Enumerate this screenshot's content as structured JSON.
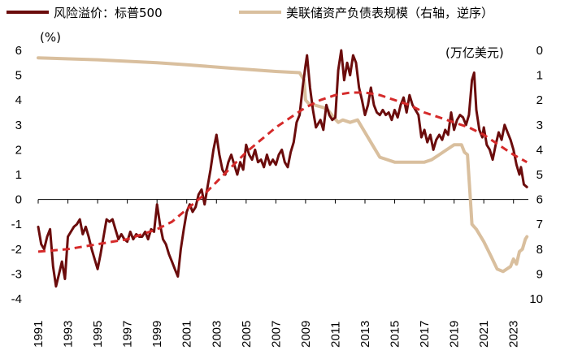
{
  "chart_data": {
    "type": "line",
    "title": "",
    "xlabel": "",
    "legend": "top",
    "x_ticks": [
      "1991",
      "1993",
      "1995",
      "1997",
      "1999",
      "2001",
      "2003",
      "2005",
      "2007",
      "2009",
      "2011",
      "2013",
      "2015",
      "2017",
      "2019",
      "2021",
      "2023"
    ],
    "left_axis": {
      "unit": "(%)",
      "range": [
        -4,
        6
      ],
      "ticks": [
        "6",
        "5",
        "4",
        "3",
        "2",
        "1",
        "0",
        "-1",
        "-2",
        "-3",
        "-4"
      ]
    },
    "right_axis": {
      "unit": "(万亿美元)",
      "range": [
        0,
        10
      ],
      "inverted": true,
      "ticks": [
        "0",
        "1",
        "2",
        "3",
        "4",
        "5",
        "6",
        "7",
        "8",
        "9",
        "10"
      ]
    },
    "colors": {
      "risk": "#6b0c0c",
      "fed": "#d9bf9e",
      "trend": "#d52a2a"
    },
    "series": [
      {
        "name": "风险溢价：标普500",
        "axis": "left",
        "style": "solid",
        "points": [
          [
            1991.0,
            -1.1
          ],
          [
            1991.2,
            -1.8
          ],
          [
            1991.4,
            -2.0
          ],
          [
            1991.6,
            -1.5
          ],
          [
            1991.8,
            -1.2
          ],
          [
            1992.0,
            -2.7
          ],
          [
            1992.2,
            -3.5
          ],
          [
            1992.4,
            -3.0
          ],
          [
            1992.6,
            -2.5
          ],
          [
            1992.8,
            -3.2
          ],
          [
            1993.0,
            -1.5
          ],
          [
            1993.2,
            -1.3
          ],
          [
            1993.4,
            -1.1
          ],
          [
            1993.6,
            -1.0
          ],
          [
            1993.8,
            -0.8
          ],
          [
            1994.0,
            -1.4
          ],
          [
            1994.2,
            -1.1
          ],
          [
            1994.4,
            -1.5
          ],
          [
            1994.6,
            -2.0
          ],
          [
            1994.8,
            -2.4
          ],
          [
            1995.0,
            -2.8
          ],
          [
            1995.2,
            -2.2
          ],
          [
            1995.4,
            -1.5
          ],
          [
            1995.6,
            -0.8
          ],
          [
            1995.8,
            -0.9
          ],
          [
            1996.0,
            -0.8
          ],
          [
            1996.2,
            -1.2
          ],
          [
            1996.4,
            -1.6
          ],
          [
            1996.6,
            -1.4
          ],
          [
            1996.8,
            -1.6
          ],
          [
            1997.0,
            -1.7
          ],
          [
            1997.2,
            -1.3
          ],
          [
            1997.4,
            -1.6
          ],
          [
            1997.6,
            -1.4
          ],
          [
            1997.8,
            -1.5
          ],
          [
            1998.0,
            -1.5
          ],
          [
            1998.2,
            -1.3
          ],
          [
            1998.4,
            -1.6
          ],
          [
            1998.6,
            -1.2
          ],
          [
            1998.8,
            -1.3
          ],
          [
            1999.0,
            -0.2
          ],
          [
            1999.2,
            -1.0
          ],
          [
            1999.4,
            -1.6
          ],
          [
            1999.6,
            -1.8
          ],
          [
            1999.8,
            -2.2
          ],
          [
            2000.0,
            -2.5
          ],
          [
            2000.2,
            -2.8
          ],
          [
            2000.4,
            -3.1
          ],
          [
            2000.6,
            -2.0
          ],
          [
            2000.8,
            -1.2
          ],
          [
            2001.0,
            -0.5
          ],
          [
            2001.2,
            -0.2
          ],
          [
            2001.4,
            -0.5
          ],
          [
            2001.6,
            -0.3
          ],
          [
            2001.8,
            0.2
          ],
          [
            2002.0,
            0.4
          ],
          [
            2002.2,
            -0.2
          ],
          [
            2002.4,
            0.5
          ],
          [
            2002.6,
            1.2
          ],
          [
            2002.8,
            2.0
          ],
          [
            2003.0,
            2.6
          ],
          [
            2003.2,
            1.8
          ],
          [
            2003.4,
            1.2
          ],
          [
            2003.6,
            1.0
          ],
          [
            2003.8,
            1.5
          ],
          [
            2004.0,
            1.8
          ],
          [
            2004.2,
            1.4
          ],
          [
            2004.4,
            1.0
          ],
          [
            2004.6,
            1.5
          ],
          [
            2004.8,
            1.2
          ],
          [
            2005.0,
            2.2
          ],
          [
            2005.2,
            1.8
          ],
          [
            2005.4,
            1.6
          ],
          [
            2005.6,
            2.0
          ],
          [
            2005.8,
            1.5
          ],
          [
            2006.0,
            1.6
          ],
          [
            2006.2,
            1.3
          ],
          [
            2006.4,
            1.8
          ],
          [
            2006.6,
            1.4
          ],
          [
            2006.8,
            1.6
          ],
          [
            2007.0,
            1.4
          ],
          [
            2007.2,
            1.8
          ],
          [
            2007.4,
            2.0
          ],
          [
            2007.6,
            1.5
          ],
          [
            2007.8,
            1.3
          ],
          [
            2008.0,
            1.9
          ],
          [
            2008.2,
            2.3
          ],
          [
            2008.4,
            3.1
          ],
          [
            2008.6,
            3.4
          ],
          [
            2008.8,
            4.5
          ],
          [
            2009.0,
            5.4
          ],
          [
            2009.1,
            5.8
          ],
          [
            2009.3,
            4.5
          ],
          [
            2009.5,
            3.6
          ],
          [
            2009.7,
            2.9
          ],
          [
            2010.0,
            3.2
          ],
          [
            2010.2,
            2.8
          ],
          [
            2010.4,
            3.8
          ],
          [
            2010.6,
            3.4
          ],
          [
            2010.8,
            3.2
          ],
          [
            2011.0,
            3.3
          ],
          [
            2011.2,
            5.2
          ],
          [
            2011.4,
            6.0
          ],
          [
            2011.6,
            4.8
          ],
          [
            2011.8,
            5.5
          ],
          [
            2012.0,
            5.0
          ],
          [
            2012.2,
            5.8
          ],
          [
            2012.4,
            5.5
          ],
          [
            2012.6,
            4.5
          ],
          [
            2012.8,
            4.0
          ],
          [
            2013.0,
            3.4
          ],
          [
            2013.2,
            3.8
          ],
          [
            2013.4,
            4.5
          ],
          [
            2013.6,
            3.8
          ],
          [
            2013.8,
            3.5
          ],
          [
            2014.0,
            3.4
          ],
          [
            2014.2,
            3.6
          ],
          [
            2014.4,
            3.4
          ],
          [
            2014.6,
            3.5
          ],
          [
            2014.8,
            3.2
          ],
          [
            2015.0,
            3.6
          ],
          [
            2015.2,
            3.3
          ],
          [
            2015.4,
            3.8
          ],
          [
            2015.6,
            4.1
          ],
          [
            2015.8,
            3.5
          ],
          [
            2016.0,
            4.2
          ],
          [
            2016.2,
            3.8
          ],
          [
            2016.4,
            3.6
          ],
          [
            2016.6,
            3.4
          ],
          [
            2016.8,
            2.5
          ],
          [
            2017.0,
            2.8
          ],
          [
            2017.2,
            2.3
          ],
          [
            2017.4,
            2.6
          ],
          [
            2017.6,
            2.0
          ],
          [
            2017.8,
            2.4
          ],
          [
            2018.0,
            2.6
          ],
          [
            2018.2,
            2.4
          ],
          [
            2018.4,
            2.8
          ],
          [
            2018.6,
            2.6
          ],
          [
            2018.8,
            3.5
          ],
          [
            2019.0,
            2.8
          ],
          [
            2019.2,
            3.2
          ],
          [
            2019.4,
            3.4
          ],
          [
            2019.6,
            3.3
          ],
          [
            2019.8,
            3.0
          ],
          [
            2020.0,
            3.4
          ],
          [
            2020.2,
            4.8
          ],
          [
            2020.35,
            5.1
          ],
          [
            2020.5,
            3.6
          ],
          [
            2020.7,
            2.8
          ],
          [
            2020.9,
            2.5
          ],
          [
            2021.0,
            2.9
          ],
          [
            2021.2,
            2.2
          ],
          [
            2021.4,
            2.0
          ],
          [
            2021.6,
            1.6
          ],
          [
            2021.8,
            2.2
          ],
          [
            2022.0,
            2.7
          ],
          [
            2022.2,
            2.4
          ],
          [
            2022.4,
            3.0
          ],
          [
            2022.6,
            2.7
          ],
          [
            2022.8,
            2.4
          ],
          [
            2023.0,
            2.0
          ],
          [
            2023.2,
            1.4
          ],
          [
            2023.4,
            1.0
          ],
          [
            2023.5,
            1.3
          ],
          [
            2023.7,
            0.6
          ],
          [
            2023.9,
            0.5
          ]
        ]
      },
      {
        "name": "美联储资产负债表规模（右轴，逆序）",
        "axis": "right",
        "style": "solid",
        "points": [
          [
            1991.0,
            0.3
          ],
          [
            1995.0,
            0.38
          ],
          [
            1999.0,
            0.5
          ],
          [
            2001.0,
            0.58
          ],
          [
            2004.0,
            0.72
          ],
          [
            2007.0,
            0.85
          ],
          [
            2008.6,
            0.9
          ],
          [
            2008.9,
            1.2
          ],
          [
            2009.0,
            2.0
          ],
          [
            2009.3,
            2.2
          ],
          [
            2009.6,
            2.2
          ],
          [
            2010.2,
            2.3
          ],
          [
            2010.5,
            2.4
          ],
          [
            2010.9,
            2.7
          ],
          [
            2011.2,
            2.9
          ],
          [
            2011.5,
            2.8
          ],
          [
            2012.0,
            2.9
          ],
          [
            2012.5,
            2.8
          ],
          [
            2013.0,
            3.3
          ],
          [
            2013.5,
            3.8
          ],
          [
            2014.0,
            4.3
          ],
          [
            2014.5,
            4.4
          ],
          [
            2015.0,
            4.5
          ],
          [
            2016.0,
            4.5
          ],
          [
            2017.0,
            4.5
          ],
          [
            2017.5,
            4.4
          ],
          [
            2018.0,
            4.2
          ],
          [
            2018.5,
            4.0
          ],
          [
            2019.0,
            3.8
          ],
          [
            2019.5,
            3.8
          ],
          [
            2019.7,
            4.1
          ],
          [
            2019.9,
            4.2
          ],
          [
            2020.1,
            6.0
          ],
          [
            2020.2,
            7.0
          ],
          [
            2020.5,
            7.2
          ],
          [
            2021.0,
            7.7
          ],
          [
            2021.5,
            8.3
          ],
          [
            2021.9,
            8.8
          ],
          [
            2022.3,
            8.9
          ],
          [
            2022.8,
            8.7
          ],
          [
            2023.0,
            8.4
          ],
          [
            2023.2,
            8.6
          ],
          [
            2023.4,
            8.1
          ],
          [
            2023.6,
            8.0
          ],
          [
            2023.8,
            7.6
          ],
          [
            2023.9,
            7.5
          ]
        ]
      },
      {
        "name": "趋势线",
        "axis": "left",
        "style": "dashed",
        "points": [
          [
            1991.0,
            -2.1
          ],
          [
            1993.0,
            -2.0
          ],
          [
            1995.0,
            -1.8
          ],
          [
            1997.0,
            -1.6
          ],
          [
            1999.0,
            -1.2
          ],
          [
            2000.0,
            -0.9
          ],
          [
            2001.0,
            -0.4
          ],
          [
            2002.0,
            0.1
          ],
          [
            2003.0,
            0.7
          ],
          [
            2004.0,
            1.3
          ],
          [
            2005.0,
            1.9
          ],
          [
            2006.0,
            2.4
          ],
          [
            2007.0,
            2.9
          ],
          [
            2008.0,
            3.3
          ],
          [
            2009.0,
            3.7
          ],
          [
            2010.0,
            4.0
          ],
          [
            2011.0,
            4.2
          ],
          [
            2012.0,
            4.3
          ],
          [
            2013.0,
            4.3
          ],
          [
            2014.0,
            4.2
          ],
          [
            2015.0,
            4.0
          ],
          [
            2016.0,
            3.8
          ],
          [
            2017.0,
            3.5
          ],
          [
            2018.0,
            3.3
          ],
          [
            2019.0,
            3.1
          ],
          [
            2020.0,
            2.9
          ],
          [
            2021.0,
            2.6
          ],
          [
            2022.0,
            2.2
          ],
          [
            2023.0,
            1.8
          ],
          [
            2023.9,
            1.5
          ]
        ]
      }
    ]
  }
}
